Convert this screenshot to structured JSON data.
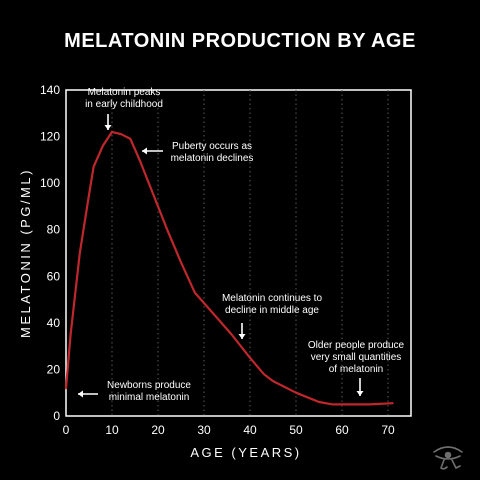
{
  "title": "MELATONIN PRODUCTION BY AGE",
  "chart_data": {
    "type": "line",
    "xlabel": "AGE (YEARS)",
    "ylabel": "MELATONIN (PG/ML)",
    "xlim": [
      0,
      75
    ],
    "ylim": [
      0,
      140
    ],
    "xticks": [
      0,
      10,
      20,
      30,
      40,
      50,
      60,
      70
    ],
    "yticks": [
      0,
      20,
      40,
      60,
      80,
      100,
      120,
      140
    ],
    "grid": "vertical dotted",
    "line_color": "#c0272d",
    "series": [
      {
        "x": [
          0,
          1,
          3,
          5,
          6,
          8,
          10,
          12,
          14,
          16,
          18,
          20,
          22,
          25,
          28,
          32,
          36,
          40,
          43,
          45,
          50,
          55,
          58,
          62,
          66,
          71
        ],
        "values": [
          12,
          35,
          70,
          95,
          107,
          116,
          122,
          121,
          119,
          110,
          100,
          90,
          80,
          66,
          53,
          44,
          35,
          25,
          18,
          15,
          10,
          6,
          5,
          5,
          5,
          5.5
        ]
      }
    ],
    "annotations": [
      {
        "lines": [
          "Melatonin peaks",
          "in early childhood"
        ],
        "x": 9,
        "y": 124
      },
      {
        "lines": [
          "Puberty occurs as",
          "melatonin declines"
        ],
        "x": 15,
        "y": 115
      },
      {
        "lines": [
          "Melatonin continues to",
          "decline in middle age"
        ],
        "x": 38,
        "y": 28
      },
      {
        "lines": [
          "Older people produce",
          "very small quantities",
          "of melatonin"
        ],
        "x": 63,
        "y": 7
      },
      {
        "lines": [
          "Newborns produce",
          "minimal melatonin"
        ],
        "x": 1,
        "y": 10
      }
    ]
  },
  "watermark_icon": "eye-of-horus-icon"
}
